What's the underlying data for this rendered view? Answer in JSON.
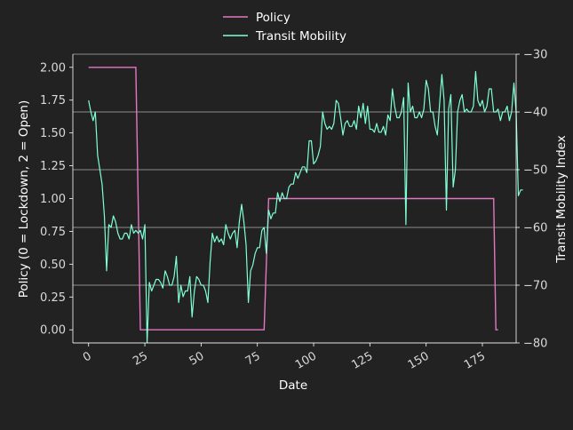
{
  "chart_data": {
    "type": "line",
    "title": "",
    "xlabel": "Date",
    "ylabel_left": "Policy (0 = Lockdown, 2 = Open)",
    "ylabel_right": "Transit Mobility Index",
    "xlim": [
      -7,
      190
    ],
    "ylim_left": [
      -0.1,
      2.1
    ],
    "ylim_right": [
      -80,
      -30
    ],
    "x_ticks": [
      "0",
      "25",
      "50",
      "75",
      "100",
      "125",
      "150",
      "175"
    ],
    "y_left_ticks": [
      "0.00",
      "0.25",
      "0.50",
      "0.75",
      "1.00",
      "1.25",
      "1.50",
      "1.75",
      "2.00"
    ],
    "y_right_ticks": [
      "−80",
      "−70",
      "−60",
      "−50",
      "−40",
      "−30"
    ],
    "grid": "horizontal, right axis",
    "legend": "top-center",
    "series": [
      {
        "name": "Policy",
        "axis": "left",
        "color": "#e377c2",
        "points": [
          [
            0,
            2
          ],
          [
            21,
            2
          ],
          [
            22,
            1
          ],
          [
            23,
            0
          ],
          [
            78,
            0
          ],
          [
            79,
            0.5
          ],
          [
            80,
            1
          ],
          [
            180,
            1
          ],
          [
            181,
            0
          ],
          [
            182,
            0
          ]
        ]
      },
      {
        "name": "Transit Mobility",
        "axis": "right",
        "color": "#7fffd4",
        "x_start": 0,
        "values": [
          -38,
          -40,
          -41.5,
          -40,
          -47.5,
          -50,
          -52.5,
          -58,
          -67.5,
          -59.5,
          -60,
          -58,
          -59,
          -61,
          -62,
          -62,
          -61,
          -61,
          -62,
          -59.5,
          -61,
          -60.5,
          -61,
          -60.5,
          -62,
          -59.5,
          -80,
          -69.5,
          -71,
          -70,
          -69,
          -69,
          -69.5,
          -70.5,
          -67.5,
          -68.5,
          -70,
          -70,
          -68.5,
          -65,
          -73,
          -70,
          -72,
          -71,
          -71,
          -68.5,
          -75.5,
          -71,
          -68.5,
          -69,
          -70,
          -70,
          -71,
          -73,
          -66,
          -61,
          -62.5,
          -61.5,
          -62.5,
          -62,
          -63,
          -59.5,
          -61,
          -62,
          -61,
          -60.5,
          -63.5,
          -59,
          -56,
          -59,
          -63,
          -73,
          -67.5,
          -66.5,
          -64.5,
          -63.5,
          -63.5,
          -60.5,
          -60,
          -64.5,
          -57,
          -58.5,
          -57.5,
          -57.5,
          -54,
          -55.5,
          -54,
          -55,
          -55,
          -53,
          -52.5,
          -52.5,
          -50.5,
          -51.5,
          -50.5,
          -49.5,
          -49.5,
          -50.5,
          -45,
          -45,
          -49,
          -48.5,
          -47.5,
          -46,
          -40,
          -42,
          -43,
          -42.5,
          -43,
          -42,
          -38,
          -38.5,
          -41,
          -44,
          -42,
          -41.5,
          -42.5,
          -42.5,
          -41.5,
          -43,
          -39,
          -41,
          -38.5,
          -42,
          -39,
          -43,
          -43,
          -43.5,
          -42,
          -43.5,
          -43.5,
          -42.5,
          -44,
          -40.5,
          -41.5,
          -36,
          -39,
          -41,
          -41,
          -40,
          -37.5,
          -59.5,
          -35,
          -40,
          -39,
          -41,
          -41,
          -40,
          -41,
          -39.5,
          -34.5,
          -36,
          -40,
          -40,
          -42.5,
          -44,
          -38.5,
          -33.5,
          -38,
          -57,
          -39.5,
          -37,
          -53,
          -50,
          -40,
          -38,
          -37,
          -40,
          -39.5,
          -40,
          -40,
          -39,
          -33,
          -38,
          -39,
          -38,
          -40,
          -39,
          -36,
          -36,
          -40,
          -40,
          -39.5,
          -41.5,
          -40,
          -40,
          -39,
          -41.5,
          -40,
          -35,
          -40,
          -54.5,
          -53.5,
          -53.5
        ]
      }
    ]
  }
}
